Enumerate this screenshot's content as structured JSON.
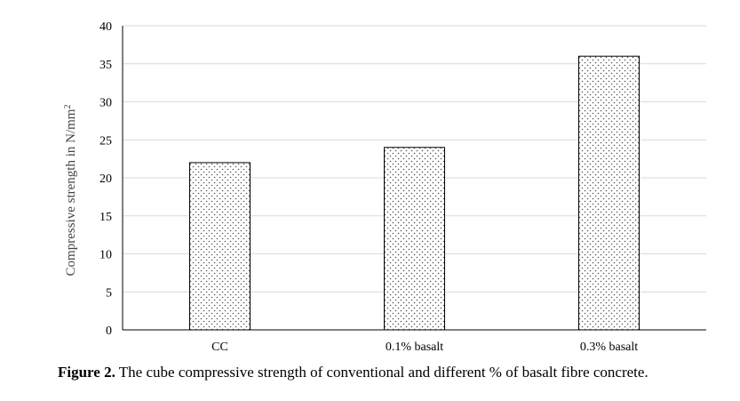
{
  "chart_data": {
    "type": "bar",
    "categories": [
      "CC",
      "0.1% basalt",
      "0.3% basalt"
    ],
    "values": [
      22,
      24,
      36
    ],
    "ylabel": "Compressive strength  in N/mm",
    "ylabel_superscript": "2",
    "xlabel": "",
    "ylim": [
      0,
      40
    ],
    "yticks": [
      "0",
      "5",
      "10",
      "15",
      "20",
      "25",
      "30",
      "35",
      "40"
    ],
    "grid": true,
    "legend": "none",
    "bar_fill": "dotted pattern",
    "colors": {
      "bar_edge": "#000000",
      "dots": "#555555",
      "grid": "#d9d9d9",
      "axis": "#000000"
    }
  },
  "caption": {
    "label": "Figure 2.",
    "text": " The cube compressive strength of conventional and different % of basalt fibre concrete."
  }
}
